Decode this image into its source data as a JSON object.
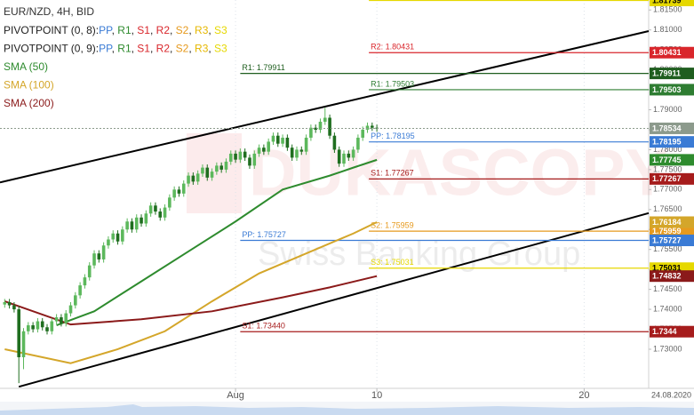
{
  "chart_data": {
    "type": "candlestick",
    "title": "EUR/NZD, 4H, BID",
    "watermark": {
      "title": "DUKASCOPY",
      "subtitle": "Swiss Banking Group"
    },
    "date_label": "24.08.2020",
    "bull_color": "#5cb85c",
    "bear_color": "#1f6e1f",
    "x": [
      1,
      2,
      3,
      4,
      5,
      6,
      7,
      8,
      9,
      10,
      11,
      12,
      13,
      14,
      15,
      16,
      17,
      18,
      19,
      20,
      21,
      22,
      23,
      24,
      25,
      26,
      27,
      28,
      29,
      30,
      31,
      32,
      33,
      34,
      35,
      36,
      37,
      38,
      39,
      40,
      41,
      42,
      43,
      44,
      45,
      46,
      47,
      48,
      49,
      50,
      51,
      52,
      53,
      54,
      55,
      56,
      57,
      58,
      59,
      60,
      61,
      62,
      63,
      64,
      65,
      66,
      67,
      68,
      69,
      70,
      71,
      72,
      73,
      74,
      75,
      76,
      77,
      78,
      79,
      80
    ],
    "open": [
      1.7412,
      1.7418,
      1.741,
      1.74,
      1.728,
      1.7345,
      1.736,
      1.735,
      1.737,
      1.7355,
      1.7345,
      1.737,
      1.738,
      1.7365,
      1.739,
      1.741,
      1.7435,
      1.746,
      1.748,
      1.751,
      1.754,
      1.7525,
      1.756,
      1.7575,
      1.759,
      1.757,
      1.76,
      1.762,
      1.76,
      1.763,
      1.7615,
      1.764,
      1.766,
      1.7645,
      1.763,
      1.7655,
      1.768,
      1.77,
      1.769,
      1.7715,
      1.7735,
      1.772,
      1.774,
      1.7755,
      1.773,
      1.7745,
      1.776,
      1.775,
      1.777,
      1.779,
      1.7775,
      1.7795,
      1.778,
      1.776,
      1.779,
      1.7805,
      1.7795,
      1.782,
      1.7835,
      1.7815,
      1.783,
      1.7805,
      1.778,
      1.78,
      1.7795,
      1.783,
      1.7855,
      1.785,
      1.787,
      1.788,
      1.7835,
      1.78,
      1.7765,
      1.779,
      1.778,
      1.78,
      1.783,
      1.785,
      1.786,
      1.7855
    ],
    "high": [
      1.7426,
      1.7426,
      1.7418,
      1.7408,
      1.7353,
      1.7368,
      1.7368,
      1.7378,
      1.7378,
      1.7363,
      1.7378,
      1.7388,
      1.7388,
      1.7398,
      1.7418,
      1.7443,
      1.7468,
      1.7488,
      1.7518,
      1.7548,
      1.7548,
      1.7568,
      1.7583,
      1.7598,
      1.7598,
      1.7608,
      1.7628,
      1.7628,
      1.7638,
      1.7638,
      1.7648,
      1.7668,
      1.7668,
      1.7653,
      1.7663,
      1.7688,
      1.7708,
      1.7708,
      1.7723,
      1.7743,
      1.7743,
      1.7748,
      1.7763,
      1.7763,
      1.7753,
      1.7768,
      1.7768,
      1.7778,
      1.7798,
      1.7798,
      1.7803,
      1.7803,
      1.7788,
      1.7798,
      1.7813,
      1.7813,
      1.7828,
      1.7843,
      1.7843,
      1.7838,
      1.7838,
      1.7813,
      1.7808,
      1.7808,
      1.7838,
      1.7863,
      1.7863,
      1.7878,
      1.7905,
      1.7888,
      1.7843,
      1.7808,
      1.7798,
      1.7798,
      1.7808,
      1.7838,
      1.7858,
      1.7868,
      1.7868,
      1.7863
    ],
    "low": [
      1.7404,
      1.7402,
      1.7392,
      1.7215,
      1.725,
      1.7337,
      1.7342,
      1.7342,
      1.7347,
      1.7337,
      1.7337,
      1.7362,
      1.7357,
      1.7357,
      1.7382,
      1.7402,
      1.7427,
      1.7452,
      1.7472,
      1.7502,
      1.7517,
      1.7517,
      1.7552,
      1.7567,
      1.7562,
      1.7562,
      1.7592,
      1.7592,
      1.7592,
      1.7607,
      1.7607,
      1.7632,
      1.7637,
      1.7622,
      1.7622,
      1.7647,
      1.7672,
      1.7682,
      1.7682,
      1.7707,
      1.7712,
      1.7712,
      1.7732,
      1.7722,
      1.7722,
      1.7737,
      1.7742,
      1.7742,
      1.7762,
      1.7767,
      1.7767,
      1.7772,
      1.7752,
      1.7752,
      1.7782,
      1.7787,
      1.7787,
      1.7812,
      1.7807,
      1.7807,
      1.7797,
      1.7772,
      1.7772,
      1.7787,
      1.7787,
      1.7822,
      1.7842,
      1.7842,
      1.7862,
      1.7827,
      1.7792,
      1.7757,
      1.7757,
      1.7772,
      1.7772,
      1.7792,
      1.7822,
      1.7842,
      1.7847,
      1.7845
    ],
    "close": [
      1.7418,
      1.741,
      1.74,
      1.728,
      1.7345,
      1.736,
      1.735,
      1.737,
      1.7355,
      1.7345,
      1.737,
      1.738,
      1.7365,
      1.739,
      1.741,
      1.7435,
      1.746,
      1.748,
      1.751,
      1.754,
      1.7525,
      1.756,
      1.7575,
      1.759,
      1.757,
      1.76,
      1.762,
      1.76,
      1.763,
      1.7615,
      1.764,
      1.766,
      1.7645,
      1.763,
      1.7655,
      1.768,
      1.77,
      1.769,
      1.7715,
      1.7735,
      1.772,
      1.774,
      1.7755,
      1.773,
      1.7745,
      1.776,
      1.775,
      1.777,
      1.779,
      1.7775,
      1.7795,
      1.778,
      1.776,
      1.779,
      1.7805,
      1.7795,
      1.782,
      1.7835,
      1.7815,
      1.783,
      1.7805,
      1.778,
      1.78,
      1.7795,
      1.783,
      1.7855,
      1.785,
      1.787,
      1.788,
      1.7835,
      1.78,
      1.7765,
      1.779,
      1.778,
      1.78,
      1.783,
      1.785,
      1.786,
      1.7855,
      1.78534
    ],
    "last_price_color": "#8c9a8c",
    "series": [
      {
        "name": "SMA (50)",
        "color": "#2e8b2e",
        "x": [
          12,
          20,
          30,
          40,
          50,
          60,
          70,
          75,
          80
        ],
        "values": [
          1.736,
          1.7395,
          1.747,
          1.7545,
          1.762,
          1.77,
          1.7735,
          1.7755,
          1.77745
        ]
      },
      {
        "name": "SMA (100)",
        "color": "#d4a62a",
        "x": [
          1,
          15,
          25,
          35,
          45,
          55,
          65,
          75,
          80
        ],
        "values": [
          1.73,
          1.7265,
          1.73,
          1.7345,
          1.742,
          1.749,
          1.754,
          1.759,
          1.76184
        ]
      },
      {
        "name": "SMA (200)",
        "color": "#8b1a1a",
        "x": [
          1,
          15,
          30,
          45,
          60,
          70,
          80
        ],
        "values": [
          1.742,
          1.7362,
          1.7375,
          1.7395,
          1.743,
          1.7455,
          1.74832
        ]
      }
    ],
    "trendlines": [
      {
        "color": "#000000",
        "x": [
          0,
          137.7
        ],
        "values": [
          1.7718,
          1.8097
        ]
      },
      {
        "color": "#000000",
        "x": [
          4,
          137.7
        ],
        "values": [
          1.7206,
          1.7641
        ]
      }
    ],
    "legend_separator": ", ",
    "pivot_sets": [
      {
        "name": "PIVOTPOINT (0, 8):",
        "start_x": 78.3,
        "legend_items": [
          {
            "name": "PP",
            "color": "#3a7bd5"
          },
          {
            "name": "R1",
            "color": "#2e8b2e"
          },
          {
            "name": "S1",
            "color": "#d9262b"
          },
          {
            "name": "R2",
            "color": "#d9262b"
          },
          {
            "name": "S2",
            "color": "#e69a1e"
          },
          {
            "name": "R3",
            "color": "#e6b800"
          },
          {
            "name": "S3",
            "color": "#e6d800"
          }
        ],
        "levels": [
          {
            "name": "R3",
            "value": 1.81739,
            "color": "#e6d800"
          },
          {
            "name": "R2",
            "value": 1.80431,
            "color": "#d9262b",
            "label": "R2: 1.80431"
          },
          {
            "name": "R1",
            "value": 1.79503,
            "color": "#2e7d32",
            "label": "R1: 1.79503"
          },
          {
            "name": "PP",
            "value": 1.78195,
            "color": "#3a7bd5",
            "label": "PP: 1.78195"
          },
          {
            "name": "S1",
            "value": 1.77267,
            "color": "#a61c1c",
            "label": "S1: 1.77267"
          },
          {
            "name": "S2",
            "value": 1.75959,
            "color": "#e69a1e",
            "label": "S2: 1.75959"
          },
          {
            "name": "S3",
            "value": 1.75031,
            "color": "#e6d800",
            "label": "S3: 1.75031"
          }
        ]
      },
      {
        "name": "PIVOTPOINT (0, 9):",
        "start_x": 51,
        "legend_items": [
          {
            "name": "PP",
            "color": "#3a7bd5"
          },
          {
            "name": "R1",
            "color": "#2e8b2e"
          },
          {
            "name": "S1",
            "color": "#d9262b"
          },
          {
            "name": "R2",
            "color": "#d9262b"
          },
          {
            "name": "S2",
            "color": "#e69a1e"
          },
          {
            "name": "R3",
            "color": "#e6b800"
          },
          {
            "name": "S3",
            "color": "#e6d800"
          }
        ],
        "levels": [
          {
            "name": "R1",
            "value": 1.79911,
            "color": "#1f5e1f",
            "label": "R1: 1.79911"
          },
          {
            "name": "PP",
            "value": 1.75727,
            "color": "#3a7bd5",
            "label": "PP: 1.75727"
          },
          {
            "name": "S1",
            "value": 1.7344,
            "color": "#a61c1c",
            "label": "S1: 1.73440"
          }
        ]
      }
    ],
    "xlim": [
      0,
      137.7
    ],
    "xticks": [
      {
        "value": 50,
        "label": "Aug"
      },
      {
        "value": 80,
        "label": "10"
      },
      {
        "value": 124,
        "label": "20"
      }
    ],
    "ylim": [
      1.7202,
      1.8175
    ],
    "yticks": [
      {
        "value": 1.815,
        "label": "1.81500"
      },
      {
        "value": 1.81,
        "label": "1.81000"
      },
      {
        "value": 1.805,
        "label": "1.80500"
      },
      {
        "value": 1.8,
        "label": "1.80000"
      },
      {
        "value": 1.795,
        "label": "1.79500"
      },
      {
        "value": 1.79,
        "label": "1.79000"
      },
      {
        "value": 1.785,
        "label": "1.78500"
      },
      {
        "value": 1.78,
        "label": "1.78000"
      },
      {
        "value": 1.775,
        "label": "1.77500"
      },
      {
        "value": 1.77,
        "label": "1.77000"
      },
      {
        "value": 1.765,
        "label": "1.76500"
      },
      {
        "value": 1.76,
        "label": "1.76000"
      },
      {
        "value": 1.755,
        "label": "1.75500"
      },
      {
        "value": 1.75,
        "label": "1.75000"
      },
      {
        "value": 1.745,
        "label": "1.74500"
      },
      {
        "value": 1.74,
        "label": "1.74000"
      },
      {
        "value": 1.735,
        "label": "1.73500"
      },
      {
        "value": 1.73,
        "label": "1.73000"
      }
    ]
  }
}
